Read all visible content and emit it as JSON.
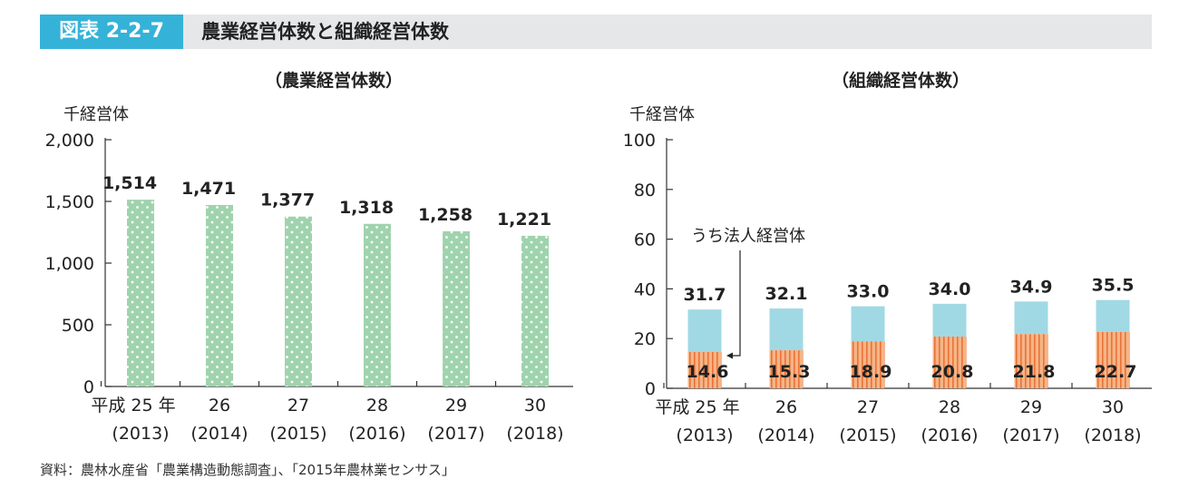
{
  "header": {
    "figure_label": "図表 2-2-7",
    "title": "農業経営体数と組織経営体数"
  },
  "source": "資料：農林水産省「農業構造動態調査」、「2015年農林業センサス」",
  "colors": {
    "header_accent": "#35b2d8",
    "header_bg": "#e6e7e8",
    "farm_bar": "#9fd3ad",
    "org_total_bar": "#a0d9e4",
    "corp_bar": "#f6b485",
    "corp_stripe": "#e9733a"
  },
  "chart_data": [
    {
      "type": "bar",
      "title": "（農業経営体数）",
      "ylabel": "千経営体",
      "categories": [
        {
          "line1": "平成 25 年",
          "line2": "(2013)"
        },
        {
          "line1": "26",
          "line2": "(2014)"
        },
        {
          "line1": "27",
          "line2": "(2015)"
        },
        {
          "line1": "28",
          "line2": "(2016)"
        },
        {
          "line1": "29",
          "line2": "(2017)"
        },
        {
          "line1": "30",
          "line2": "(2018)"
        }
      ],
      "values": [
        1514,
        1471,
        1377,
        1318,
        1258,
        1221
      ],
      "value_labels": [
        "1,514",
        "1,471",
        "1,377",
        "1,318",
        "1,258",
        "1,221"
      ],
      "ylim": [
        0,
        2000
      ],
      "yticks": [
        0,
        500,
        1000,
        1500,
        2000
      ],
      "ytick_labels": [
        "0",
        "500",
        "1,000",
        "1,500",
        "2,000"
      ],
      "grid": false
    },
    {
      "type": "bar",
      "title": "（組織経営体数）",
      "ylabel": "千経営体",
      "categories": [
        {
          "line1": "平成 25 年",
          "line2": "(2013)"
        },
        {
          "line1": "26",
          "line2": "(2014)"
        },
        {
          "line1": "27",
          "line2": "(2015)"
        },
        {
          "line1": "28",
          "line2": "(2016)"
        },
        {
          "line1": "29",
          "line2": "(2017)"
        },
        {
          "line1": "30",
          "line2": "(2018)"
        }
      ],
      "series": [
        {
          "values": [
            31.7,
            32.1,
            33.0,
            34.0,
            34.9,
            35.5
          ],
          "labels": [
            "31.7",
            "32.1",
            "33.0",
            "34.0",
            "34.9",
            "35.5"
          ]
        },
        {
          "name": "うち法人経営体",
          "values": [
            14.6,
            15.3,
            18.9,
            20.8,
            21.8,
            22.7
          ],
          "labels": [
            "14.6",
            "15.3",
            "18.9",
            "20.8",
            "21.8",
            "22.7"
          ]
        }
      ],
      "annotation": "うち法人経営体",
      "ylim": [
        0,
        100
      ],
      "yticks": [
        0,
        20,
        40,
        60,
        80,
        100
      ],
      "ytick_labels": [
        "0",
        "20",
        "40",
        "60",
        "80",
        "100"
      ],
      "grid": false
    }
  ]
}
